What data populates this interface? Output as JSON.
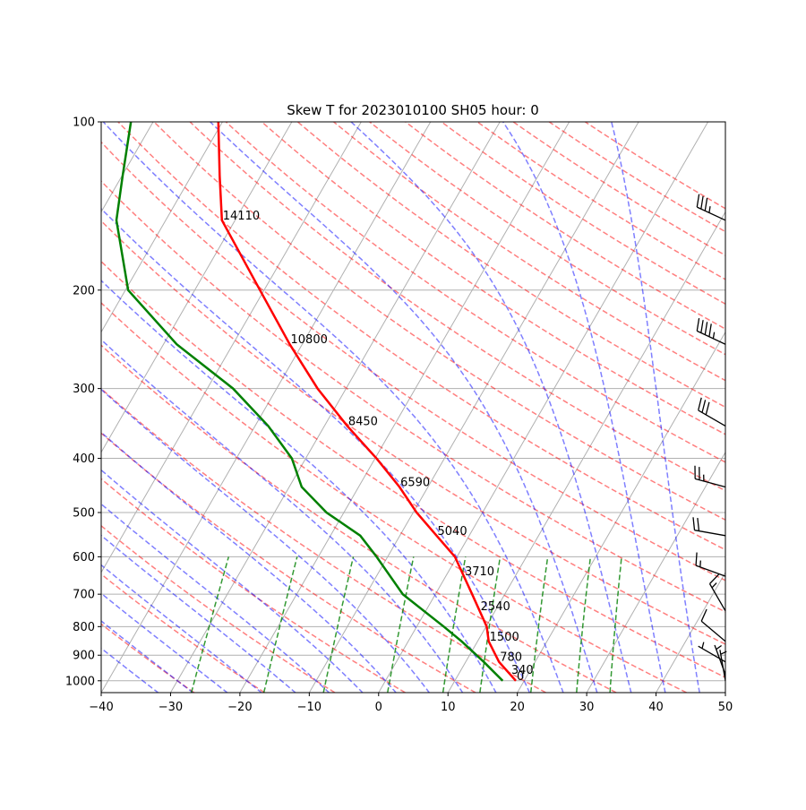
{
  "chart_data": {
    "type": "skewt",
    "title": "Skew T for 2023010100 SH05 hour: 0",
    "pressure": [
      1000,
      925,
      850,
      800,
      700,
      600,
      550,
      500,
      450,
      400,
      350,
      300,
      250,
      200,
      150,
      125,
      100
    ],
    "series": [
      {
        "color": "#ff0000",
        "values": [
          18.8,
          14.8,
          11.6,
          10.1,
          5.3,
          -0.3,
          -4.7,
          -9.5,
          -14.1,
          -19.8,
          -26.7,
          -34.1,
          -41.8,
          -50.6,
          -61.9,
          -65.9,
          -70.6
        ]
      },
      {
        "color": "#008000",
        "values": [
          16.9,
          12.6,
          7.7,
          3.9,
          -4.7,
          -11.6,
          -15.7,
          -22.5,
          -28.2,
          -32.0,
          -38.1,
          -46.3,
          -58.1,
          -69.6,
          -77.1,
          -79.9,
          -83.2
        ]
      }
    ],
    "heights": {
      "pressure": [
        150,
        250,
        350,
        450,
        550,
        650,
        750,
        850,
        925,
        975,
        1000
      ],
      "values": [
        14110,
        10800,
        8450,
        6590,
        5040,
        3710,
        2540,
        1500,
        780,
        340,
        0
      ]
    },
    "wind": {
      "pressure": [
        150,
        250,
        350,
        450,
        550,
        650,
        750,
        850,
        925,
        975,
        1000
      ],
      "direction": [
        295,
        295,
        300,
        285,
        280,
        290,
        330,
        310,
        300,
        340,
        350
      ],
      "speed": [
        35,
        45,
        30,
        25,
        20,
        15,
        15,
        10,
        5,
        5,
        5
      ]
    },
    "xlim": [
      -40,
      50
    ],
    "xticks": [
      {
        "value": -40,
        "label": "−40"
      },
      {
        "value": -30,
        "label": "−30"
      },
      {
        "value": -20,
        "label": "−20"
      },
      {
        "value": -10,
        "label": "−10"
      },
      0,
      10,
      20,
      30,
      40,
      50
    ],
    "ylim": [
      1050,
      100
    ],
    "yticks": [
      1000,
      900,
      800,
      700,
      600,
      500,
      400,
      300,
      200,
      100
    ],
    "log_scale": true,
    "grid": true
  }
}
